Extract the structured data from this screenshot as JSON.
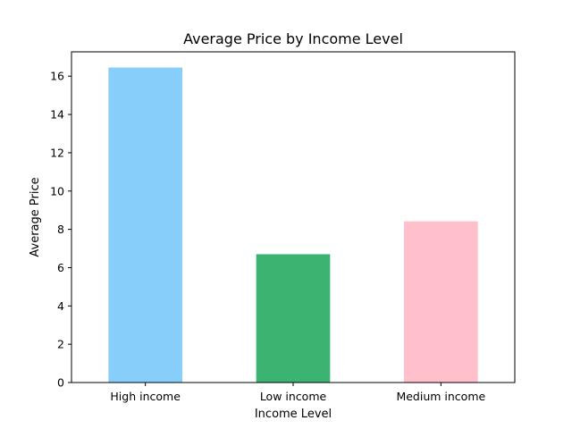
{
  "chart_data": {
    "type": "bar",
    "title": "Average Price by Income Level",
    "xlabel": "Income Level",
    "ylabel": "Average Price",
    "categories": [
      "High income",
      "Low income",
      "Medium income"
    ],
    "values": [
      16.45,
      6.7,
      8.42
    ],
    "colors": [
      "#87CEFA",
      "#3CB371",
      "#FFC0CB"
    ],
    "ylim": [
      0,
      17.27
    ],
    "yticks": [
      0,
      2,
      4,
      6,
      8,
      10,
      12,
      14,
      16
    ],
    "grid": false,
    "legend": "none"
  }
}
